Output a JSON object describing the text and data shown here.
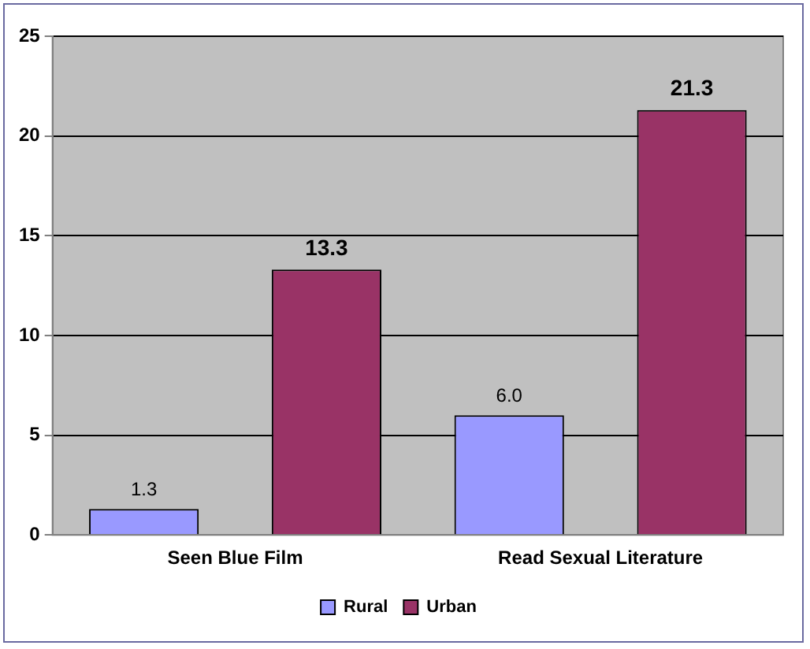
{
  "chart_data": {
    "type": "bar",
    "categories": [
      "Seen Blue Film",
      "Read Sexual Literature"
    ],
    "series": [
      {
        "name": "Rural",
        "color": "#9999ff",
        "values": [
          1.3,
          6.0
        ],
        "value_labels": [
          "1.3",
          "6.0"
        ]
      },
      {
        "name": "Urban",
        "color": "#993366",
        "values": [
          13.3,
          21.3
        ],
        "value_labels": [
          "13.3",
          "21.3"
        ]
      }
    ],
    "ylim": [
      0,
      25
    ],
    "yticks": [
      0,
      5,
      10,
      15,
      20,
      25
    ],
    "grid": "y",
    "legend": "bottom"
  }
}
